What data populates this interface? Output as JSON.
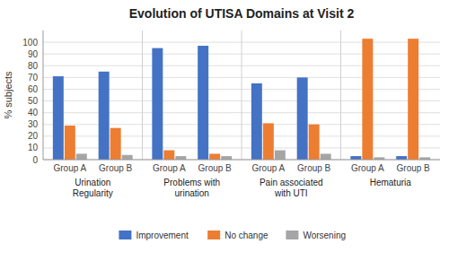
{
  "chart_data": {
    "type": "bar",
    "title": "Evolution of UTISA Domains at Visit 2",
    "y_label": "% subjects",
    "categories": [
      "Group A",
      "Group B",
      "Group A",
      "Group B",
      "Group A",
      "Group B",
      "Group A",
      "Group B"
    ],
    "annotations": [
      "Urination\nRegularity",
      "Problems with\nurination",
      "Pain associated\nwith UTI",
      "Hematuria"
    ],
    "series": [
      {
        "name": "Improvement",
        "color": "#4472C4",
        "values": [
          71,
          75,
          95,
          97,
          65,
          70,
          3,
          3
        ]
      },
      {
        "name": "No change",
        "color": "#ED7D31",
        "values": [
          29,
          27,
          8,
          5,
          31,
          30,
          103,
          103
        ]
      },
      {
        "name": "Worsening",
        "color": "#A5A5A5",
        "values": [
          5,
          4,
          3,
          3,
          8,
          5,
          2,
          2
        ]
      }
    ],
    "ylim": [
      0,
      110
    ],
    "yticks": [
      0,
      10,
      20,
      30,
      40,
      50,
      60,
      70,
      80,
      90,
      100
    ],
    "grid": true,
    "legend": "bottom"
  }
}
